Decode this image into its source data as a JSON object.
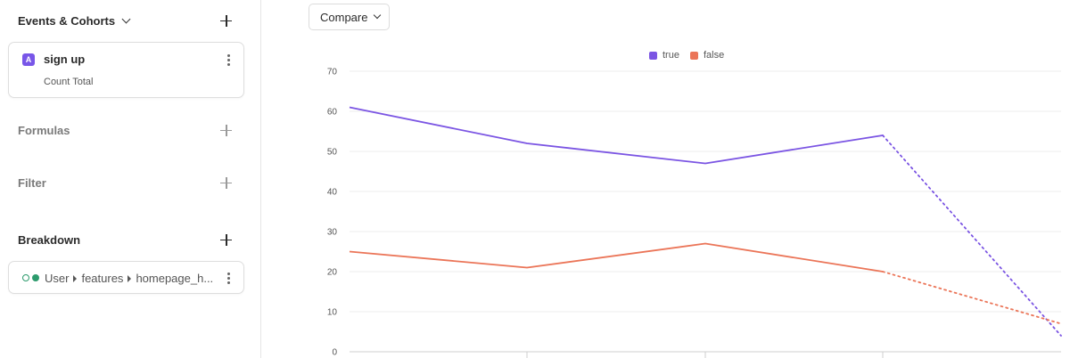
{
  "sidebar": {
    "events": {
      "title": "Events & Cohorts",
      "items": [
        {
          "badge": "A",
          "name": "sign up",
          "measure": "Count Total"
        }
      ]
    },
    "formulas": {
      "title": "Formulas"
    },
    "filter": {
      "title": "Filter"
    },
    "breakdown": {
      "title": "Breakdown",
      "path": [
        "User",
        "features",
        "homepage_h..."
      ]
    }
  },
  "toolbar": {
    "compare_label": "Compare"
  },
  "colors": {
    "accent": "#7856e8",
    "series_true": "#7b55e3",
    "series_false": "#eb7558",
    "breakdown": "#2d9b6d"
  },
  "chart_data": {
    "type": "line",
    "ylim": [
      0,
      70
    ],
    "yticks": [
      0,
      10,
      20,
      30,
      40,
      50,
      60,
      70
    ],
    "x": [
      0,
      1,
      2,
      3,
      4
    ],
    "legend_position": "top",
    "grid": true,
    "series": [
      {
        "name": "true",
        "values": [
          61,
          52,
          47,
          54,
          4
        ],
        "color": "#7b55e3",
        "partial_from_index": 3
      },
      {
        "name": "false",
        "values": [
          25,
          21,
          27,
          20,
          7
        ],
        "color": "#eb7558",
        "partial_from_index": 3
      }
    ]
  }
}
